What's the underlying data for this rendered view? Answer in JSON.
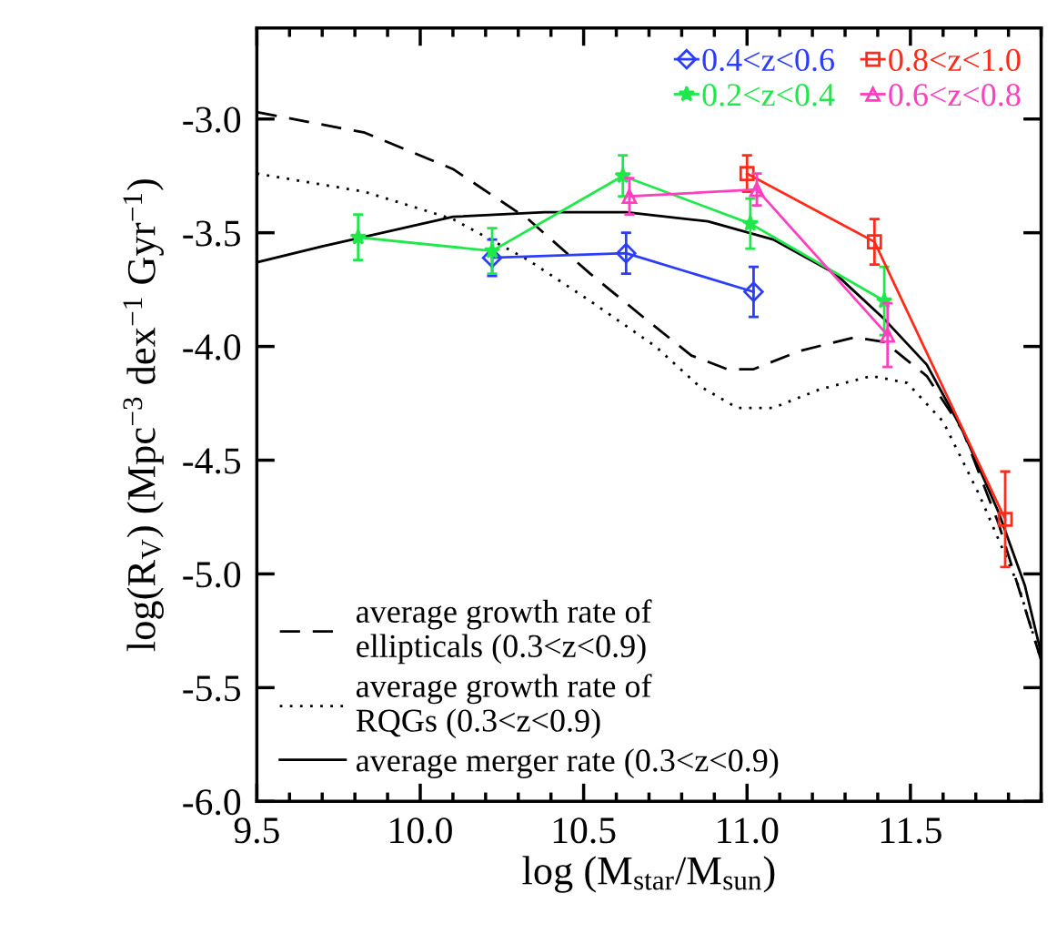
{
  "chart_data": {
    "type": "line",
    "xlabel": "log (M$_{star}$/M$_{sun}$)",
    "ylabel": "log(R$_{V}$) (Mpc$^{−3}$ dex$^{−1}$ Gyr$^{−1}$)",
    "xlim": [
      9.5,
      11.9
    ],
    "ylim": [
      -6.0,
      -2.6
    ],
    "xticks": [
      9.5,
      {
        "value": 10,
        "label": "10.0"
      },
      10.5,
      {
        "value": 11,
        "label": "11.0"
      },
      11.5
    ],
    "yticks": [
      {
        "value": -6,
        "label": "-6.0"
      },
      -5.5,
      {
        "value": -5,
        "label": "-5.0"
      },
      -4.5,
      {
        "value": -4,
        "label": "-4.0"
      },
      -3.5,
      {
        "value": -3,
        "label": "-3.0"
      }
    ],
    "legend": "top right",
    "grid": false,
    "series": [
      {
        "name": "0.4<z<0.6",
        "color": "#2b3cff",
        "marker": "diamond",
        "line_style": "solid",
        "x": [
          10.22,
          10.63,
          11.02
        ],
        "values": [
          -3.61,
          -3.59,
          -3.76
        ],
        "errors": [
          0.08,
          0.09,
          0.11
        ]
      },
      {
        "name": "0.2<z<0.4",
        "color": "#1ee84a",
        "marker": "star",
        "line_style": "solid",
        "x": [
          9.81,
          10.22,
          10.62,
          11.01,
          11.42
        ],
        "values": [
          -3.52,
          -3.58,
          -3.25,
          -3.46,
          -3.8
        ],
        "errors": [
          0.1,
          0.1,
          0.09,
          0.11,
          0.15
        ]
      },
      {
        "name": "0.8<z<1.0",
        "color": "#ff2a1a",
        "marker": "square",
        "line_style": "solid",
        "x": [
          11.0,
          11.39,
          11.79
        ],
        "values": [
          -3.24,
          -3.54,
          -4.76
        ],
        "errors": [
          0.08,
          0.1,
          0.21
        ]
      },
      {
        "name": "0.6<z<0.8",
        "color": "#ff3ec0",
        "marker": "triangle",
        "line_style": "solid",
        "x": [
          10.64,
          11.03,
          11.43
        ],
        "values": [
          -3.34,
          -3.31,
          -3.95
        ],
        "errors": [
          0.08,
          0.07,
          0.14
        ]
      },
      {
        "name": "average growth rate of\nellipticals (0.3<z<0.9)",
        "color": "#000000",
        "marker": "none",
        "line_style": "dashed",
        "x": [
          9.5,
          9.83,
          10.1,
          10.33,
          10.52,
          10.69,
          10.83,
          10.94,
          11.02,
          11.16,
          11.33,
          11.42,
          11.55,
          11.66,
          11.77,
          11.9
        ],
        "values": [
          -2.97,
          -3.06,
          -3.22,
          -3.44,
          -3.68,
          -3.88,
          -4.04,
          -4.1,
          -4.1,
          -4.02,
          -3.96,
          -3.98,
          -4.13,
          -4.37,
          -4.78,
          -5.38
        ]
      },
      {
        "name": "average growth rate of\nRQGs (0.3<z<0.9)",
        "color": "#000000",
        "marker": "none",
        "line_style": "dotted",
        "x": [
          9.5,
          9.83,
          10.1,
          10.33,
          10.52,
          10.72,
          10.85,
          10.97,
          11.08,
          11.22,
          11.38,
          11.49,
          11.6,
          11.71,
          11.83,
          11.9
        ],
        "values": [
          -3.24,
          -3.32,
          -3.44,
          -3.62,
          -3.8,
          -4.0,
          -4.17,
          -4.27,
          -4.27,
          -4.19,
          -4.13,
          -4.16,
          -4.33,
          -4.65,
          -5.05,
          -5.38
        ]
      },
      {
        "name": "average merger rate (0.3<z<0.9)",
        "color": "#000000",
        "marker": "none",
        "line_style": "solid",
        "x": [
          9.5,
          9.7,
          10.1,
          10.38,
          10.63,
          10.88,
          11.08,
          11.27,
          11.42,
          11.55,
          11.66,
          11.77,
          11.85,
          11.9
        ],
        "values": [
          -3.63,
          -3.56,
          -3.43,
          -3.41,
          -3.41,
          -3.45,
          -3.53,
          -3.68,
          -3.88,
          -4.08,
          -4.37,
          -4.73,
          -5.05,
          -5.35
        ]
      }
    ]
  }
}
